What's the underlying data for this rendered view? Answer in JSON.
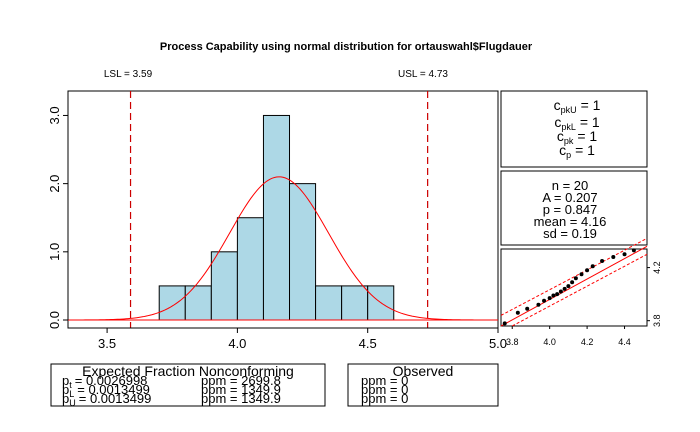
{
  "chart_data": {
    "type": "bar",
    "title": "Process Capability using normal distribution for ortauswahl$Flugdauer",
    "lsl": {
      "label": "LSL = 3.59",
      "value": 3.59
    },
    "usl": {
      "label": "USL = 4.73",
      "value": 4.73
    },
    "histogram": {
      "bin_edges": [
        3.7,
        3.8,
        3.9,
        4.0,
        4.1,
        4.2,
        4.3,
        4.4,
        4.5,
        4.6
      ],
      "densities": [
        0.5,
        0.5,
        1.0,
        1.5,
        3.0,
        2.0,
        0.5,
        0.5,
        0.5
      ],
      "xlim": [
        3.35,
        5.0
      ],
      "ylim": [
        0,
        3.3
      ],
      "x_ticks": [
        "3.5",
        "4.0",
        "4.5",
        "5.0"
      ],
      "y_ticks": [
        "0.0",
        "1.0",
        "2.0",
        "3.0"
      ],
      "fill_color": "#add8e6"
    },
    "normal_curve": {
      "mean": 4.16,
      "sd": 0.19,
      "color": "#ff0000"
    },
    "indices": [
      {
        "label": "cpkU = 1",
        "main": "c",
        "sub": "pkU",
        "value": "= 1"
      },
      {
        "label": "cpkL = 1",
        "main": "c",
        "sub": "pkL",
        "value": "= 1"
      },
      {
        "label": "cpk = 1",
        "main": "c",
        "sub": "pk",
        "value": "= 1"
      },
      {
        "label": "cp = 1",
        "main": "c",
        "sub": "p",
        "value": "= 1"
      }
    ],
    "stats": [
      "n = 20",
      "A = 0.207",
      "p = 0.847",
      "mean = 4.16",
      "sd = 0.19"
    ],
    "qq_plot": {
      "x_ticks": [
        "3.8",
        "4.0",
        "4.2",
        "4.4"
      ],
      "y_ticks": [
        "3.8",
        "4.2"
      ],
      "xlim": [
        3.74,
        4.52
      ],
      "ylim": [
        3.76,
        4.34
      ],
      "theoretical": [
        3.76,
        3.83,
        3.88,
        3.94,
        3.97,
        4.0,
        4.02,
        4.04,
        4.06,
        4.08,
        4.1,
        4.12,
        4.14,
        4.17,
        4.2,
        4.23,
        4.28,
        4.34,
        4.4,
        4.45
      ],
      "sample": [
        3.78,
        3.86,
        3.89,
        3.92,
        3.95,
        3.97,
        3.99,
        4.0,
        4.02,
        4.04,
        4.06,
        4.09,
        4.12,
        4.15,
        4.18,
        4.21,
        4.25,
        4.28,
        4.3,
        4.33
      ]
    },
    "expected_table": {
      "title": "Expected Fraction Nonconforming",
      "rows": [
        {
          "label": "pt",
          "main": "p",
          "sub": "t",
          "value": "= 0.0026998",
          "ppm": "ppm = 2699.8"
        },
        {
          "label": "pL",
          "main": "p",
          "sub": "L",
          "value": "= 0.0013499",
          "ppm": "ppm = 1349.9"
        },
        {
          "label": "pU",
          "main": "p",
          "sub": "U",
          "value": "= 0.0013499",
          "ppm": "ppm = 1349.9"
        }
      ]
    },
    "observed_table": {
      "title": "Observed",
      "rows": [
        "ppm = 0",
        "ppm = 0",
        "ppm = 0"
      ]
    }
  }
}
